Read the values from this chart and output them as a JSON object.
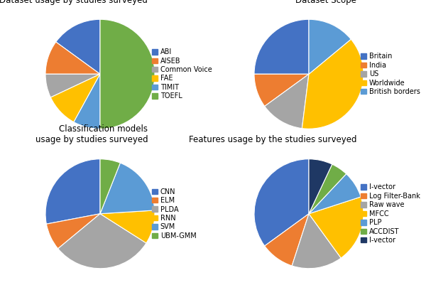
{
  "chart1": {
    "title": "Dataset usage by studies surveyed",
    "labels": [
      "ABI",
      "AISEB",
      "Common Voice",
      "FAE",
      "TIMIT",
      "TOEFL"
    ],
    "sizes": [
      15,
      10,
      7,
      10,
      8,
      50
    ],
    "colors": [
      "#4472C4",
      "#ED7D31",
      "#A5A5A5",
      "#FFC000",
      "#5B9BD5",
      "#70AD47"
    ],
    "startangle": 90
  },
  "chart2": {
    "title": "Dataset Scope",
    "labels": [
      "Britain",
      "India",
      "US",
      "Worldwide",
      "British borders"
    ],
    "sizes": [
      25,
      10,
      13,
      38,
      14
    ],
    "colors": [
      "#4472C4",
      "#ED7D31",
      "#A5A5A5",
      "#FFC000",
      "#5B9BD5"
    ],
    "startangle": 90
  },
  "chart3": {
    "title": "Classification models\nusage by studies surveyed",
    "labels": [
      "CNN",
      "ELM",
      "PLDA",
      "RNN",
      "SVM",
      "UBM-GMM"
    ],
    "sizes": [
      28,
      8,
      30,
      10,
      18,
      6
    ],
    "colors": [
      "#4472C4",
      "#ED7D31",
      "#A5A5A5",
      "#FFC000",
      "#5B9BD5",
      "#70AD47"
    ],
    "startangle": 90
  },
  "chart4": {
    "title": "Features usage by the studies surveyed",
    "labels": [
      "I-vector",
      "Log Filter-Bank",
      "Raw wave",
      "MFCC",
      "PLP",
      "ACCDIST",
      "I-vector"
    ],
    "sizes": [
      35,
      10,
      15,
      20,
      8,
      5,
      7
    ],
    "colors": [
      "#4472C4",
      "#ED7D31",
      "#A5A5A5",
      "#FFC000",
      "#5B9BD5",
      "#70AD47",
      "#1F3864"
    ],
    "startangle": 90
  },
  "background_color": "#FFFFFF",
  "legend_fontsize": 7,
  "title_fontsize": 8.5
}
